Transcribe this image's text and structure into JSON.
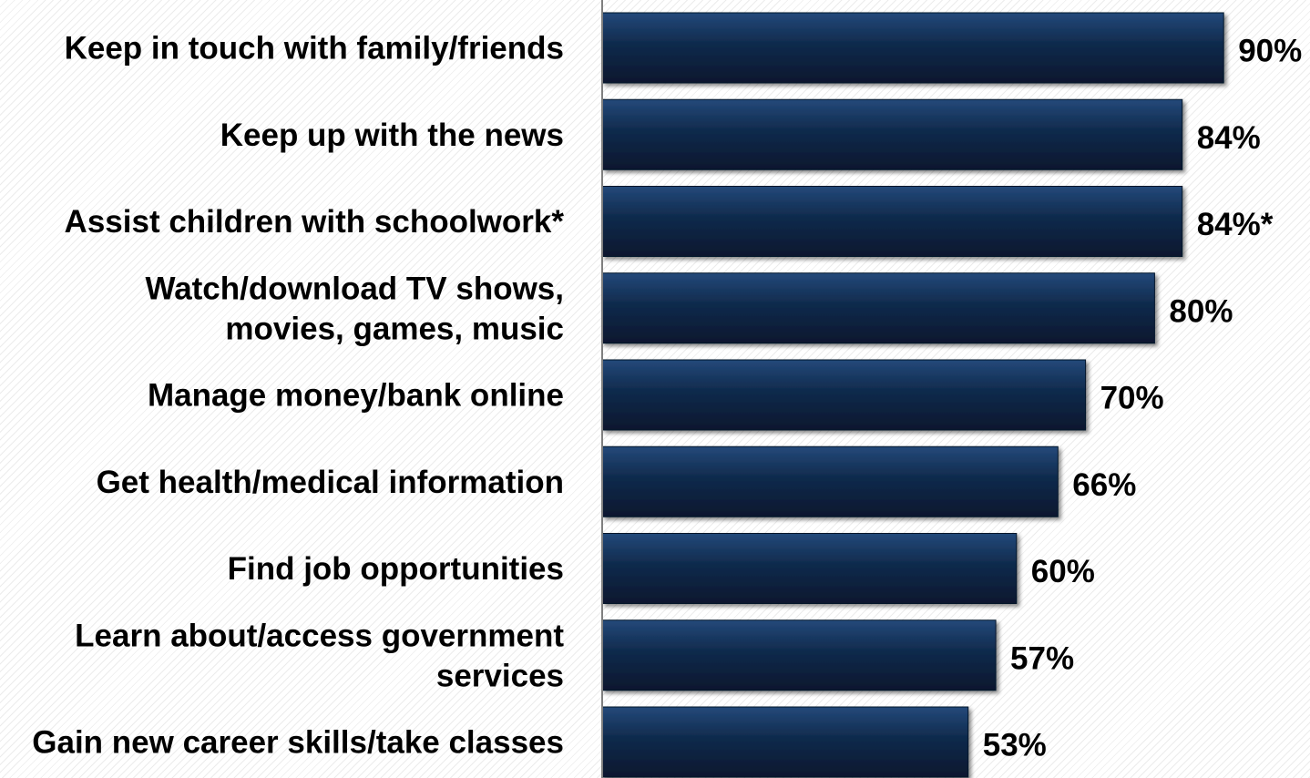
{
  "chart_data": {
    "type": "bar",
    "orientation": "horizontal",
    "categories": [
      [
        "Keep in touch with family/friends"
      ],
      [
        "Keep up with the news"
      ],
      [
        "Assist children with schoolwork*"
      ],
      [
        "Watch/download TV shows,",
        "movies, games, music"
      ],
      [
        "Manage money/bank online"
      ],
      [
        "Get health/medical information"
      ],
      [
        "Find job opportunities"
      ],
      [
        "Learn about/access government",
        "services"
      ],
      [
        "Gain new career skills/take classes"
      ]
    ],
    "values": [
      90,
      84,
      84,
      80,
      70,
      66,
      60,
      57,
      53
    ],
    "value_labels": [
      "90%",
      "84%",
      "84%*",
      "80%",
      "70%",
      "66%",
      "60%",
      "57%",
      "53%"
    ],
    "xlim": [
      0,
      100
    ],
    "grid": false,
    "bar_color": "#0f2a4c",
    "bar_highlight_color": "#24497a",
    "axis_color": "#7f7f7f"
  }
}
